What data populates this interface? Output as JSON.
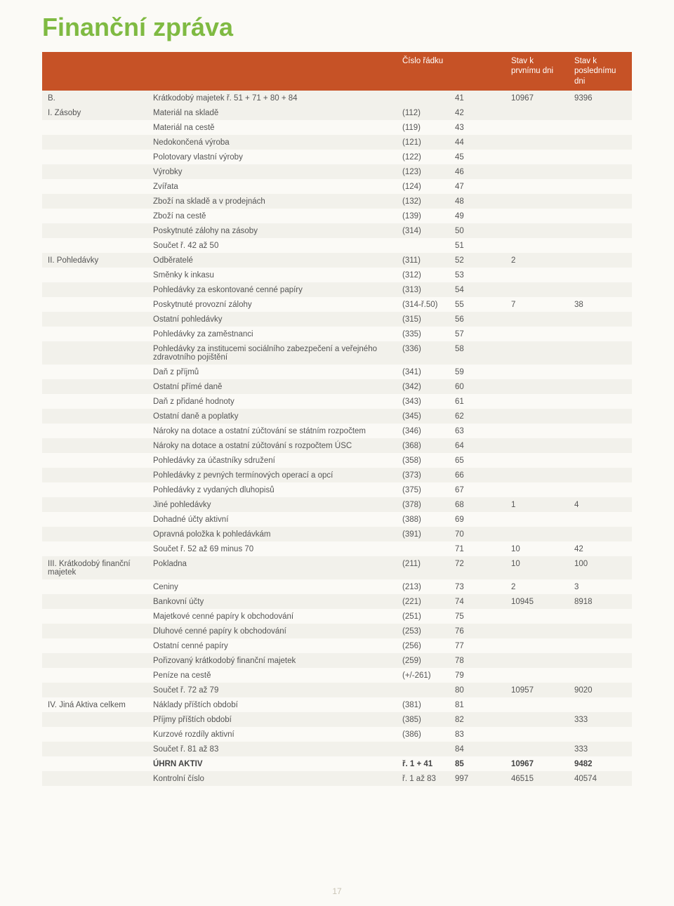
{
  "title": "Finanční zpráva",
  "page_number": "17",
  "table": {
    "headers": [
      "",
      "",
      "Číslo řádku",
      "",
      "Stav k prvnímu dni",
      "Stav k poslednímu dni"
    ],
    "columns_styling": {
      "header_bg": "#c65226",
      "header_color": "#ffffff",
      "row_even_bg": "#f2f1eb",
      "row_odd_bg": "#fbfaf6",
      "text_color": "#555555",
      "font_size_pt": 9
    },
    "rows": [
      {
        "c1": "B.",
        "c2": "Krátkodobý majetek ř. 51 + 71 + 80 + 84",
        "c3": "",
        "c4": "41",
        "c5": "10967",
        "c6": "9396"
      },
      {
        "c1": "I. Zásoby",
        "c2": "Materiál na skladě",
        "c3": "(112)",
        "c4": "42",
        "c5": "",
        "c6": ""
      },
      {
        "c1": "",
        "c2": "Materiál na cestě",
        "c3": "(119)",
        "c4": "43",
        "c5": "",
        "c6": ""
      },
      {
        "c1": "",
        "c2": "Nedokončená výroba",
        "c3": "(121)",
        "c4": "44",
        "c5": "",
        "c6": ""
      },
      {
        "c1": "",
        "c2": "Polotovary vlastní výroby",
        "c3": "(122)",
        "c4": "45",
        "c5": "",
        "c6": ""
      },
      {
        "c1": "",
        "c2": "Výrobky",
        "c3": "(123)",
        "c4": "46",
        "c5": "",
        "c6": ""
      },
      {
        "c1": "",
        "c2": "Zvířata",
        "c3": "(124)",
        "c4": "47",
        "c5": "",
        "c6": ""
      },
      {
        "c1": "",
        "c2": "Zboží na skladě a v prodejnách",
        "c3": "(132)",
        "c4": "48",
        "c5": "",
        "c6": ""
      },
      {
        "c1": "",
        "c2": "Zboží na cestě",
        "c3": "(139)",
        "c4": "49",
        "c5": "",
        "c6": ""
      },
      {
        "c1": "",
        "c2": "Poskytnuté zálohy na zásoby",
        "c3": "(314)",
        "c4": "50",
        "c5": "",
        "c6": ""
      },
      {
        "c1": "",
        "c2": "Součet ř. 42 až 50",
        "c3": "",
        "c4": "51",
        "c5": "",
        "c6": ""
      },
      {
        "c1": "II. Pohledávky",
        "c2": "Odběratelé",
        "c3": "(311)",
        "c4": "52",
        "c5": "2",
        "c6": ""
      },
      {
        "c1": "",
        "c2": "Směnky k inkasu",
        "c3": "(312)",
        "c4": "53",
        "c5": "",
        "c6": ""
      },
      {
        "c1": "",
        "c2": "Pohledávky za eskontované cenné papíry",
        "c3": "(313)",
        "c4": "54",
        "c5": "",
        "c6": ""
      },
      {
        "c1": "",
        "c2": "Poskytnuté provozní zálohy",
        "c3": "(314-ř.50)",
        "c4": "55",
        "c5": "7",
        "c6": "38"
      },
      {
        "c1": "",
        "c2": "Ostatní pohledávky",
        "c3": "(315)",
        "c4": "56",
        "c5": "",
        "c6": ""
      },
      {
        "c1": "",
        "c2": "Pohledávky za zaměstnanci",
        "c3": "(335)",
        "c4": "57",
        "c5": "",
        "c6": ""
      },
      {
        "c1": "",
        "c2": "Pohledávky za institucemi sociálního zabezpečení a veřejného zdravotního pojištění",
        "c3": "(336)",
        "c4": "58",
        "c5": "",
        "c6": ""
      },
      {
        "c1": "",
        "c2": "Daň z příjmů",
        "c3": "(341)",
        "c4": "59",
        "c5": "",
        "c6": ""
      },
      {
        "c1": "",
        "c2": "Ostatní přímé daně",
        "c3": "(342)",
        "c4": "60",
        "c5": "",
        "c6": ""
      },
      {
        "c1": "",
        "c2": "Daň z přidané hodnoty",
        "c3": "(343)",
        "c4": "61",
        "c5": "",
        "c6": ""
      },
      {
        "c1": "",
        "c2": "Ostatní daně a poplatky",
        "c3": "(345)",
        "c4": "62",
        "c5": "",
        "c6": ""
      },
      {
        "c1": "",
        "c2": "Nároky na dotace a ostatní zúčtování se státním rozpočtem",
        "c3": "(346)",
        "c4": "63",
        "c5": "",
        "c6": ""
      },
      {
        "c1": "",
        "c2": "Nároky na dotace a ostatní zúčtování s rozpočtem ÚSC",
        "c3": "(368)",
        "c4": "64",
        "c5": "",
        "c6": ""
      },
      {
        "c1": "",
        "c2": "Pohledávky za účastníky sdružení",
        "c3": "(358)",
        "c4": "65",
        "c5": "",
        "c6": ""
      },
      {
        "c1": "",
        "c2": "Pohledávky z pevných termínových operací a opcí",
        "c3": "(373)",
        "c4": "66",
        "c5": "",
        "c6": ""
      },
      {
        "c1": "",
        "c2": "Pohledávky z vydaných dluhopisů",
        "c3": "(375)",
        "c4": "67",
        "c5": "",
        "c6": ""
      },
      {
        "c1": "",
        "c2": "Jiné pohledávky",
        "c3": "(378)",
        "c4": "68",
        "c5": "1",
        "c6": "4"
      },
      {
        "c1": "",
        "c2": "Dohadné účty aktivní",
        "c3": "(388)",
        "c4": "69",
        "c5": "",
        "c6": ""
      },
      {
        "c1": "",
        "c2": "Opravná položka k pohledávkám",
        "c3": "(391)",
        "c4": "70",
        "c5": "",
        "c6": ""
      },
      {
        "c1": "",
        "c2": "Součet ř. 52 až 69 minus 70",
        "c3": "",
        "c4": "71",
        "c5": "10",
        "c6": "42"
      },
      {
        "c1": "III. Krátkodobý finanční majetek",
        "c2": "Pokladna",
        "c3": "(211)",
        "c4": "72",
        "c5": "10",
        "c6": "100"
      },
      {
        "c1": "",
        "c2": "Ceniny",
        "c3": "(213)",
        "c4": "73",
        "c5": "2",
        "c6": "3"
      },
      {
        "c1": "",
        "c2": "Bankovní účty",
        "c3": "(221)",
        "c4": "74",
        "c5": "10945",
        "c6": "8918"
      },
      {
        "c1": "",
        "c2": "Majetkové cenné papíry k obchodování",
        "c3": "(251)",
        "c4": "75",
        "c5": "",
        "c6": ""
      },
      {
        "c1": "",
        "c2": "Dluhové cenné papíry k obchodování",
        "c3": "(253)",
        "c4": "76",
        "c5": "",
        "c6": ""
      },
      {
        "c1": "",
        "c2": "Ostatní cenné papíry",
        "c3": "(256)",
        "c4": "77",
        "c5": "",
        "c6": ""
      },
      {
        "c1": "",
        "c2": "Pořizovaný krátkodobý finanční majetek",
        "c3": "(259)",
        "c4": "78",
        "c5": "",
        "c6": ""
      },
      {
        "c1": "",
        "c2": "Peníze na cestě",
        "c3": "(+/-261)",
        "c4": "79",
        "c5": "",
        "c6": ""
      },
      {
        "c1": "",
        "c2": "Součet ř. 72 až 79",
        "c3": "",
        "c4": "80",
        "c5": "10957",
        "c6": "9020"
      },
      {
        "c1": "IV. Jiná Aktiva celkem",
        "c2": "Náklady příštích období",
        "c3": "(381)",
        "c4": "81",
        "c5": "",
        "c6": ""
      },
      {
        "c1": "",
        "c2": "Příjmy příštích období",
        "c3": "(385)",
        "c4": "82",
        "c5": "",
        "c6": "333"
      },
      {
        "c1": "",
        "c2": "Kurzové rozdíly aktivní",
        "c3": "(386)",
        "c4": "83",
        "c5": "",
        "c6": ""
      },
      {
        "c1": "",
        "c2": "Součet ř. 81 až 83",
        "c3": "",
        "c4": "84",
        "c5": "",
        "c6": "333"
      },
      {
        "c1": "",
        "c2": "ÚHRN AKTIV",
        "c3": "ř. 1 + 41",
        "c4": "85",
        "c5": "10967",
        "c6": "9482",
        "bold": true
      },
      {
        "c1": "",
        "c2": "Kontrolní číslo",
        "c3": "ř. 1 až 83",
        "c4": "997",
        "c5": "46515",
        "c6": "40574"
      }
    ]
  }
}
